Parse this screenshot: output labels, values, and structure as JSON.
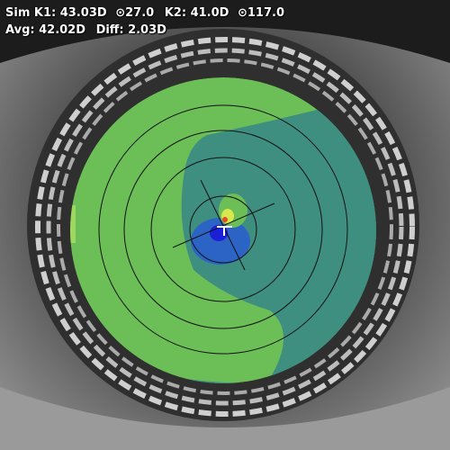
{
  "readout": {
    "sim_k1_label": "Sim K1:",
    "sim_k1_value": "43.03D",
    "sim_k1_axis": "27.0",
    "k2_label": "K2:",
    "k2_value": "41.0D",
    "k2_axis": "117.0",
    "axis_symbol": "⊙",
    "avg_label": "Avg:",
    "avg_value": "42.02D",
    "diff_label": "Diff:",
    "diff_value": "2.03D"
  },
  "colors": {
    "map_green": "#6cbf57",
    "map_teal": "#3f8f80",
    "map_blue": "#2b64c4",
    "map_deep_blue": "#1b1fd6",
    "map_yellow": "#d6e84d",
    "map_red": "#e8482b",
    "ring_line": "#111111",
    "text": "#ffffff"
  },
  "icons": {
    "pupil_center_marker": "white-cross-marker"
  }
}
